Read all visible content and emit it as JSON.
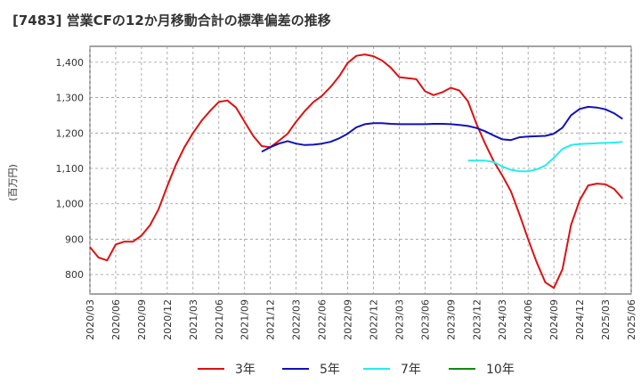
{
  "title": "[7483]  営業CFの12か月移動合計の標準偏差の推移",
  "chart_data": {
    "type": "line",
    "ylabel": "(百万円)",
    "xlabel": "",
    "ylim": [
      745,
      1445
    ],
    "yticks": [
      800,
      900,
      1000,
      1100,
      1200,
      1300,
      1400
    ],
    "ytick_labels": [
      "800",
      "900",
      "1,000",
      "1,100",
      "1,200",
      "1,300",
      "1,400"
    ],
    "xlim": [
      "2020-03",
      "2025-06"
    ],
    "xtick_labels": [
      "2020/03",
      "2020/06",
      "2020/09",
      "2020/12",
      "2021/03",
      "2021/06",
      "2021/09",
      "2021/12",
      "2022/03",
      "2022/06",
      "2022/09",
      "2022/12",
      "2023/03",
      "2023/06",
      "2023/09",
      "2023/12",
      "2024/03",
      "2024/06",
      "2024/09",
      "2024/12",
      "2025/03",
      "2025/06"
    ],
    "grid": true,
    "legend_position": "bottom",
    "series": [
      {
        "name": "3年",
        "color": "#dd1111",
        "start": "2020-03",
        "values": [
          878,
          848,
          840,
          885,
          893,
          893,
          910,
          940,
          985,
          1050,
          1110,
          1160,
          1200,
          1235,
          1263,
          1288,
          1292,
          1272,
          1232,
          1192,
          1163,
          1160,
          1178,
          1198,
          1232,
          1262,
          1287,
          1305,
          1330,
          1360,
          1398,
          1418,
          1422,
          1417,
          1405,
          1385,
          1358,
          1355,
          1352,
          1318,
          1307,
          1315,
          1328,
          1320,
          1290,
          1225,
          1170,
          1120,
          1080,
          1035,
          970,
          900,
          835,
          778,
          762,
          815,
          940,
          1010,
          1052,
          1057,
          1055,
          1042,
          1015
        ]
      },
      {
        "name": "5年",
        "color": "#1111bb",
        "start": "2021-11",
        "values": [
          1147,
          1160,
          1170,
          1177,
          1170,
          1166,
          1167,
          1170,
          1175,
          1185,
          1198,
          1216,
          1225,
          1228,
          1228,
          1226,
          1225,
          1225,
          1225,
          1225,
          1226,
          1226,
          1225,
          1223,
          1220,
          1214,
          1205,
          1193,
          1182,
          1180,
          1188,
          1190,
          1191,
          1192,
          1198,
          1215,
          1250,
          1268,
          1274,
          1272,
          1267,
          1256,
          1240
        ]
      },
      {
        "name": "7年",
        "color": "#22eeee",
        "start": "2023-11",
        "values": [
          1122,
          1122,
          1122,
          1118,
          1105,
          1096,
          1092,
          1092,
          1097,
          1108,
          1130,
          1155,
          1166,
          1169,
          1170,
          1171,
          1172,
          1173,
          1175
        ]
      },
      {
        "name": "10年",
        "color": "#118811",
        "start": "2025-06",
        "values": []
      }
    ]
  }
}
